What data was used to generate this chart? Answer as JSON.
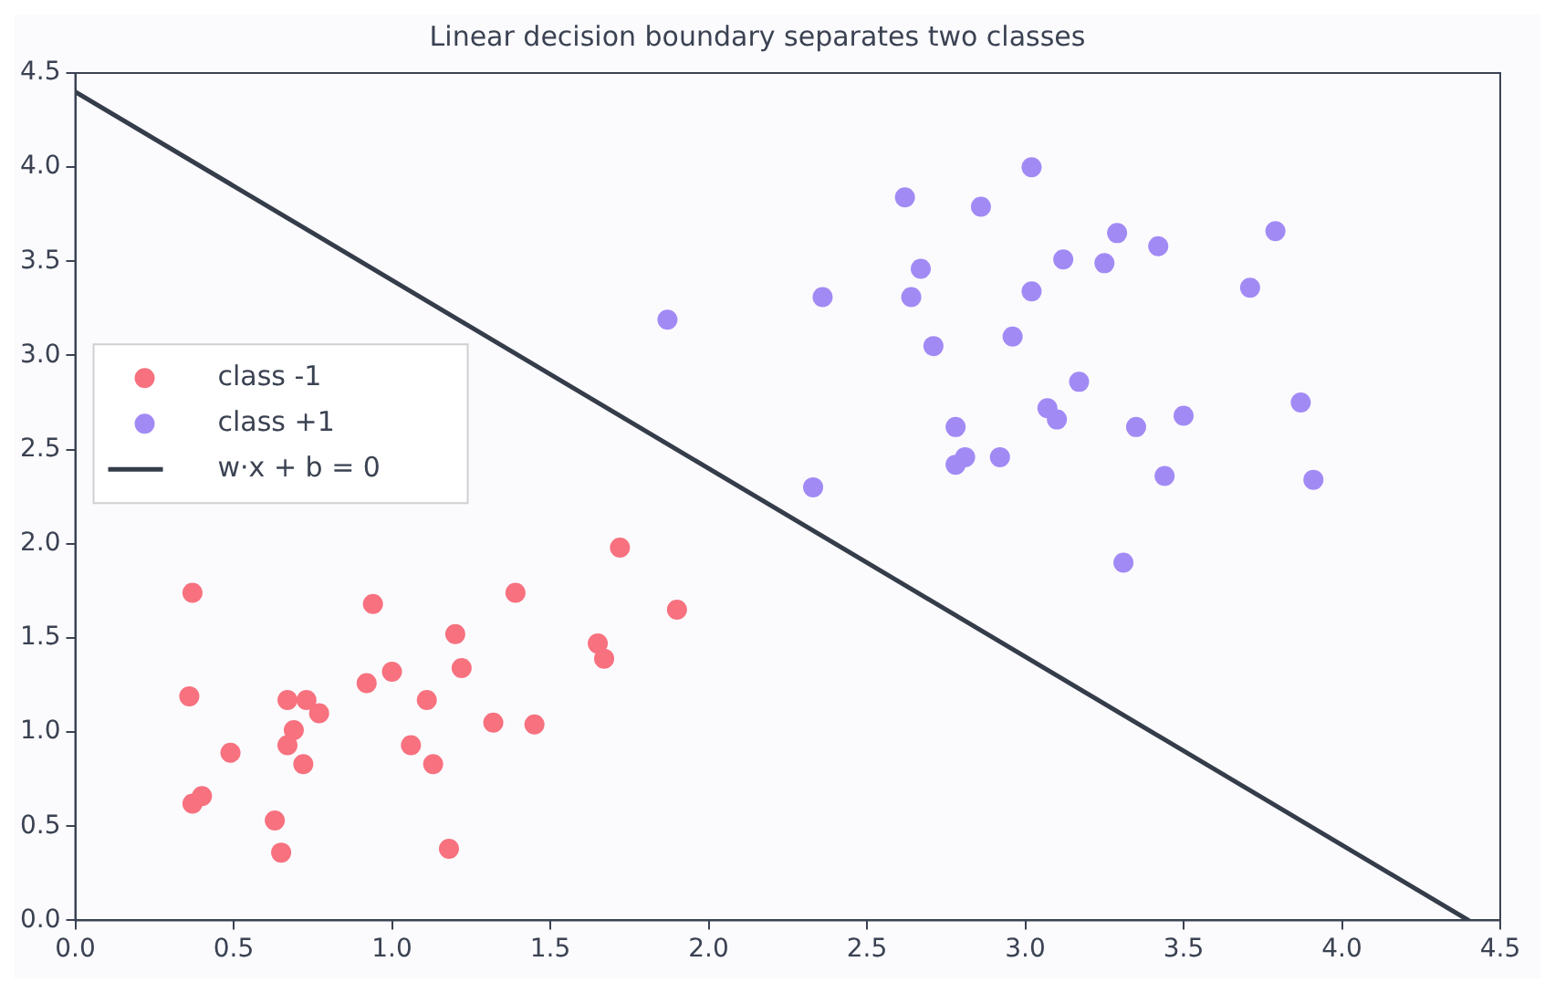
{
  "chart_data": {
    "type": "scatter",
    "title": "Linear decision boundary separates two classes",
    "xlim": [
      0,
      4.5
    ],
    "ylim": [
      0,
      4.5
    ],
    "xticks": [
      {
        "value": 0,
        "label": "0.0"
      },
      {
        "value": 0.5,
        "label": "0.5"
      },
      {
        "value": 1,
        "label": "1.0"
      },
      {
        "value": 1.5,
        "label": "1.5"
      },
      {
        "value": 2,
        "label": "2.0"
      },
      {
        "value": 2.5,
        "label": "2.5"
      },
      {
        "value": 3,
        "label": "3.0"
      },
      {
        "value": 3.5,
        "label": "3.5"
      },
      {
        "value": 4,
        "label": "4.0"
      },
      {
        "value": 4.5,
        "label": "4.5"
      }
    ],
    "yticks": [
      {
        "value": 0,
        "label": "0.0"
      },
      {
        "value": 0.5,
        "label": "0.5"
      },
      {
        "value": 1,
        "label": "1.0"
      },
      {
        "value": 1.5,
        "label": "1.5"
      },
      {
        "value": 2,
        "label": "2.0"
      },
      {
        "value": 2.5,
        "label": "2.5"
      },
      {
        "value": 3,
        "label": "3.0"
      },
      {
        "value": 3.5,
        "label": "3.5"
      },
      {
        "value": 4,
        "label": "4.0"
      },
      {
        "value": 4.5,
        "label": "4.5"
      }
    ],
    "grid": false,
    "legend": "left",
    "marker": "circle",
    "series": [
      {
        "name": "class -1",
        "color": "#f7717f",
        "x": [
          0.37,
          0.36,
          0.94,
          1.39,
          1.72,
          1.9,
          1.2,
          1.22,
          1.65,
          1.67,
          1.0,
          0.92,
          0.67,
          0.73,
          0.77,
          1.11,
          0.69,
          0.67,
          0.72,
          0.49,
          1.06,
          1.13,
          1.32,
          1.45,
          0.37,
          0.4,
          0.63,
          0.65,
          1.18
        ],
        "values": [
          1.74,
          1.19,
          1.68,
          1.74,
          1.98,
          1.65,
          1.52,
          1.34,
          1.47,
          1.39,
          1.32,
          1.26,
          1.17,
          1.17,
          1.1,
          1.17,
          1.01,
          0.93,
          0.83,
          0.89,
          0.93,
          0.83,
          1.05,
          1.04,
          0.62,
          0.66,
          0.53,
          0.36,
          0.38
        ]
      },
      {
        "name": "class +1",
        "color": "#a28af5",
        "x": [
          1.87,
          2.33,
          2.36,
          2.62,
          2.64,
          2.67,
          2.71,
          2.86,
          2.78,
          2.78,
          2.81,
          2.92,
          2.96,
          3.02,
          3.02,
          3.07,
          3.1,
          3.12,
          3.17,
          3.25,
          3.29,
          3.31,
          3.35,
          3.42,
          3.44,
          3.5,
          3.71,
          3.79,
          3.87,
          3.91
        ],
        "values": [
          3.19,
          2.3,
          3.31,
          3.84,
          3.31,
          3.46,
          3.05,
          3.79,
          2.62,
          2.42,
          2.46,
          2.46,
          3.1,
          4.0,
          3.34,
          2.72,
          2.66,
          3.51,
          2.86,
          3.49,
          3.65,
          1.9,
          2.62,
          3.58,
          2.36,
          2.68,
          3.36,
          3.66,
          2.75,
          2.34
        ]
      },
      {
        "name": "w·x + b = 0",
        "type": "line",
        "color": "#353c4a",
        "marker": "none",
        "line_style": "solid",
        "x": [
          0,
          4.4
        ],
        "values": [
          4.4,
          0
        ]
      }
    ]
  }
}
